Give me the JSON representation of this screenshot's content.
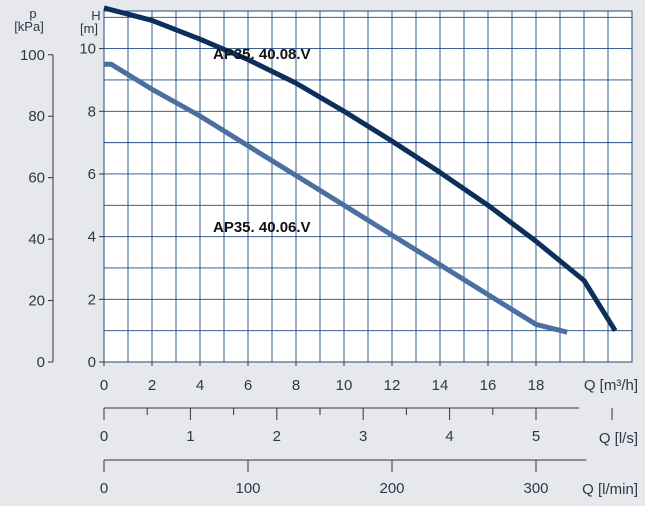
{
  "chart_data": {
    "type": "line",
    "title": "",
    "colors": {
      "background": "#e6e8ec",
      "plot_background": "#ffffff",
      "grid": "#1e4a80",
      "axis": "#333333",
      "series_08": "#0d2f5c",
      "series_06": "#4a6fa0"
    },
    "grid": true,
    "xlabel": "Q [m³/h]",
    "ylabel_left": "H [m]",
    "ylabel_outer": "p [kPa]",
    "xlim": [
      0,
      22
    ],
    "ylim": [
      0,
      11.2
    ],
    "x_ticks": [
      "0",
      "2",
      "4",
      "6",
      "8",
      "10",
      "12",
      "14",
      "16",
      "18"
    ],
    "h_ticks": [
      "0",
      "2",
      "4",
      "6",
      "8",
      "10"
    ],
    "p_axis": {
      "label_top": "p",
      "label_unit": "[kPa]",
      "ticks": [
        "0",
        "20",
        "40",
        "60",
        "80",
        "100"
      ]
    },
    "h_axis": {
      "label_top": "H",
      "label_unit": "[m]"
    },
    "ls_axis": {
      "label": "Q [l/s]",
      "ticks": [
        "0",
        "1",
        "2",
        "3",
        "4",
        "5"
      ]
    },
    "lmin_axis": {
      "label": "Q [l/min]",
      "ticks": [
        "0",
        "100",
        "200",
        "300"
      ]
    },
    "series": [
      {
        "name": "AP35. 40.08.V",
        "x": [
          0,
          2,
          4,
          6,
          8,
          10,
          12,
          14,
          16,
          18,
          20,
          21.3
        ],
        "y": [
          11.3,
          10.9,
          10.3,
          9.65,
          8.9,
          8.0,
          7.05,
          6.05,
          5.0,
          3.85,
          2.6,
          1.0
        ]
      },
      {
        "name": "AP35. 40.06.V",
        "x": [
          0,
          0.3,
          2,
          4,
          6,
          8,
          10,
          12,
          14,
          16,
          18,
          19.3
        ],
        "y": [
          9.5,
          9.5,
          8.7,
          7.85,
          6.9,
          5.95,
          5.0,
          4.05,
          3.1,
          2.15,
          1.2,
          0.95
        ]
      }
    ]
  }
}
